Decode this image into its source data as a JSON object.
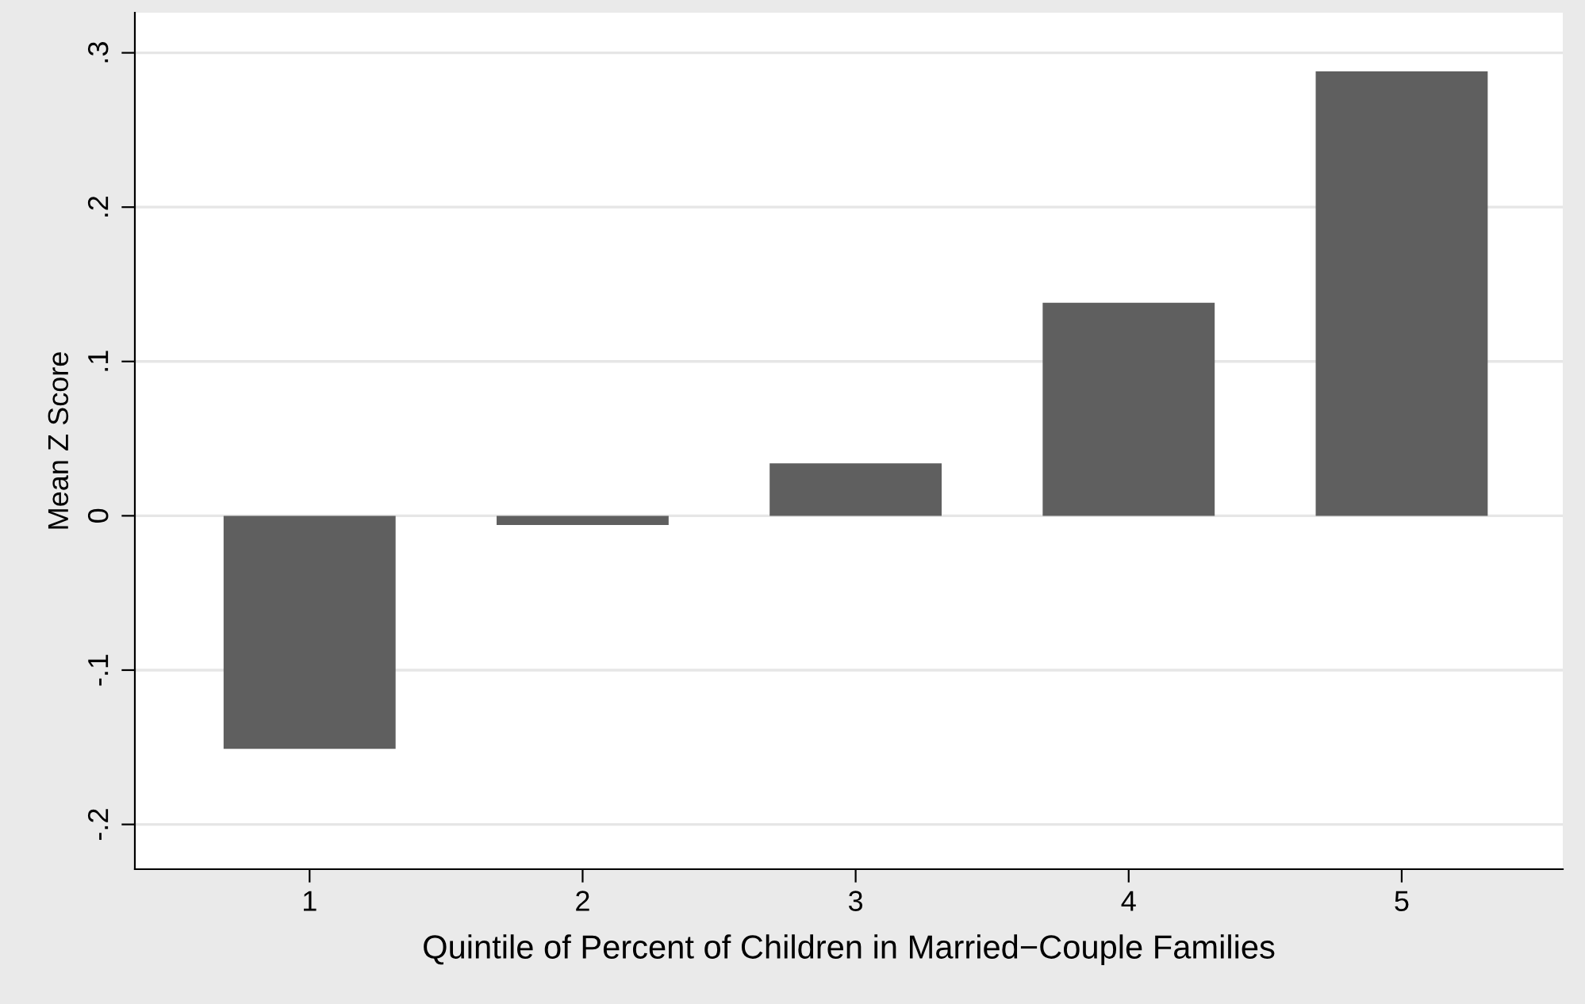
{
  "chart_data": {
    "type": "bar",
    "xlabel": "Quintile of Percent of Children in Married−Couple Families",
    "ylabel": "Mean Z Score",
    "categories": [
      "1",
      "2",
      "3",
      "4",
      "5"
    ],
    "values": [
      -0.151,
      -0.006,
      0.034,
      0.138,
      0.288
    ],
    "color": "#5f5f5f",
    "ylim": [
      -0.229,
      0.326
    ],
    "yticks": [
      {
        "value": -0.2,
        "label": "-.2"
      },
      {
        "value": -0.1,
        "label": "-.1"
      },
      {
        "value": 0,
        "label": "0"
      },
      {
        "value": 0.1,
        "label": ".1"
      },
      {
        "value": 0.2,
        "label": ".2"
      },
      {
        "value": 0.3,
        "label": ".3"
      }
    ],
    "grid": "y"
  }
}
